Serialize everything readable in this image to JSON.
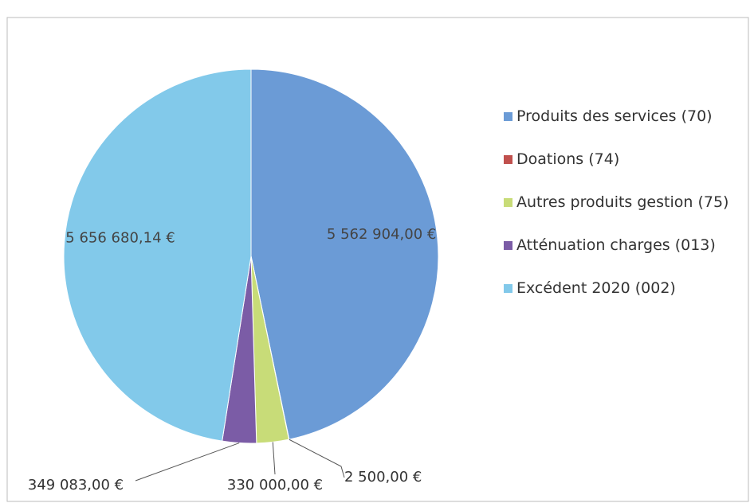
{
  "chart_data": {
    "type": "pie",
    "categories": [
      "Produits des services (70)",
      "Doations  (74)",
      "Autres produits gestion (75)",
      "Atténuation charges (013)",
      "Excédent 2020 (002)"
    ],
    "values": [
      5562904.0,
      2500.0,
      330000.0,
      349083.0,
      5656680.14
    ],
    "value_labels": [
      "5 562 904,00 €",
      "2 500,00 €",
      "330 000,00 €",
      "349 083,00 €",
      "5 656 680,14 €"
    ],
    "colors": [
      "#6b9bd6",
      "#c0504d",
      "#c8dc78",
      "#7b5ca6",
      "#82c9ea"
    ],
    "legend": "right"
  }
}
